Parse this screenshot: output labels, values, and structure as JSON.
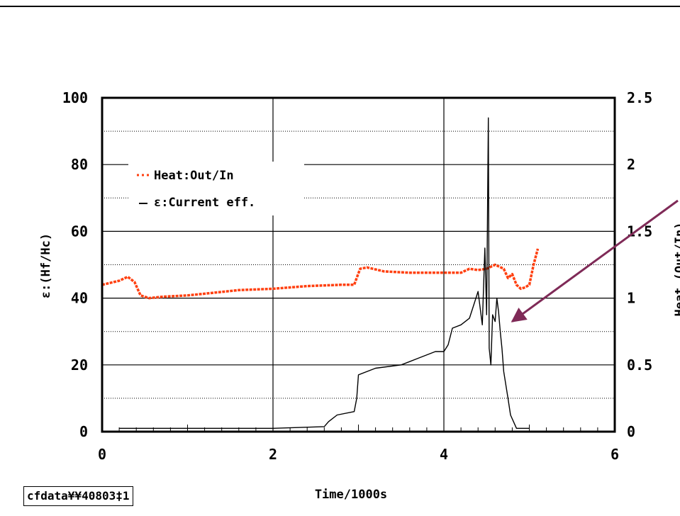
{
  "chart_data": {
    "type": "line",
    "title": "",
    "xlabel": "Time/1000s",
    "ylabel": "ε:(Hf/Hc)",
    "y2label": "Heat (Out/In)",
    "xlim": [
      0,
      6
    ],
    "ylim": [
      0,
      100
    ],
    "y2lim": [
      0,
      2.5
    ],
    "x_ticks": [
      "0",
      "2",
      "4",
      "6"
    ],
    "y_ticks": [
      "0",
      "20",
      "40",
      "60",
      "80",
      "100"
    ],
    "y2_ticks": [
      "0",
      "0.5",
      "1",
      "1.5",
      "2",
      "2.5"
    ],
    "grid": true,
    "legend_position": "upper-left",
    "series": [
      {
        "name": "Heat:Out/In",
        "axis": "right",
        "color": "#ff4010",
        "style": "dotted",
        "x": [
          0.0,
          0.2,
          0.3,
          0.38,
          0.45,
          0.55,
          0.7,
          1.0,
          1.3,
          1.6,
          2.0,
          2.4,
          2.8,
          2.95,
          3.02,
          3.1,
          3.3,
          3.6,
          3.9,
          4.1,
          4.2,
          4.3,
          4.4,
          4.5,
          4.6,
          4.7,
          4.75,
          4.8,
          4.85,
          4.9,
          4.95,
          5.0,
          5.05,
          5.1
        ],
        "y": [
          1.1,
          1.13,
          1.16,
          1.12,
          1.02,
          1.0,
          1.01,
          1.02,
          1.04,
          1.06,
          1.07,
          1.09,
          1.1,
          1.1,
          1.22,
          1.23,
          1.2,
          1.19,
          1.19,
          1.19,
          1.19,
          1.22,
          1.21,
          1.22,
          1.25,
          1.22,
          1.15,
          1.18,
          1.1,
          1.07,
          1.08,
          1.1,
          1.25,
          1.37
        ]
      },
      {
        "name": "ε:Current eff.",
        "axis": "left",
        "color": "#000000",
        "style": "solid",
        "x": [
          0.2,
          1.0,
          2.0,
          2.6,
          2.65,
          2.75,
          2.95,
          2.98,
          3.0,
          3.2,
          3.5,
          3.7,
          3.9,
          4.0,
          4.05,
          4.1,
          4.2,
          4.3,
          4.35,
          4.4,
          4.45,
          4.48,
          4.5,
          4.52,
          4.53,
          4.55,
          4.57,
          4.6,
          4.62,
          4.64,
          4.66,
          4.68,
          4.7,
          4.75,
          4.78,
          4.85,
          5.0
        ],
        "y": [
          1,
          1,
          1,
          1.5,
          3,
          5,
          6,
          10,
          17,
          19,
          20,
          22,
          24,
          24,
          26,
          31,
          32,
          34,
          38,
          42,
          32,
          55,
          35,
          94,
          25,
          20,
          35,
          33,
          40,
          36,
          30,
          25,
          18,
          10,
          5,
          1,
          1
        ]
      }
    ],
    "annotations": [
      {
        "kind": "arrow",
        "color": "#7f2a57",
        "x": 4.75,
        "y": 33
      }
    ]
  },
  "legend": {
    "heat_label": "Heat:Out/In",
    "eff_label": "ε:Current eff."
  },
  "axes": {
    "xlabel": "Time/1000s",
    "ylabel": "ε:(Hf/Hc)",
    "y2label": "Heat (Out/In)"
  },
  "footer": {
    "file_label": "cfdata¥¥40803‡1"
  },
  "colors": {
    "heat": "#ff4010",
    "eff": "#000000",
    "arrow": "#7f2a57"
  }
}
